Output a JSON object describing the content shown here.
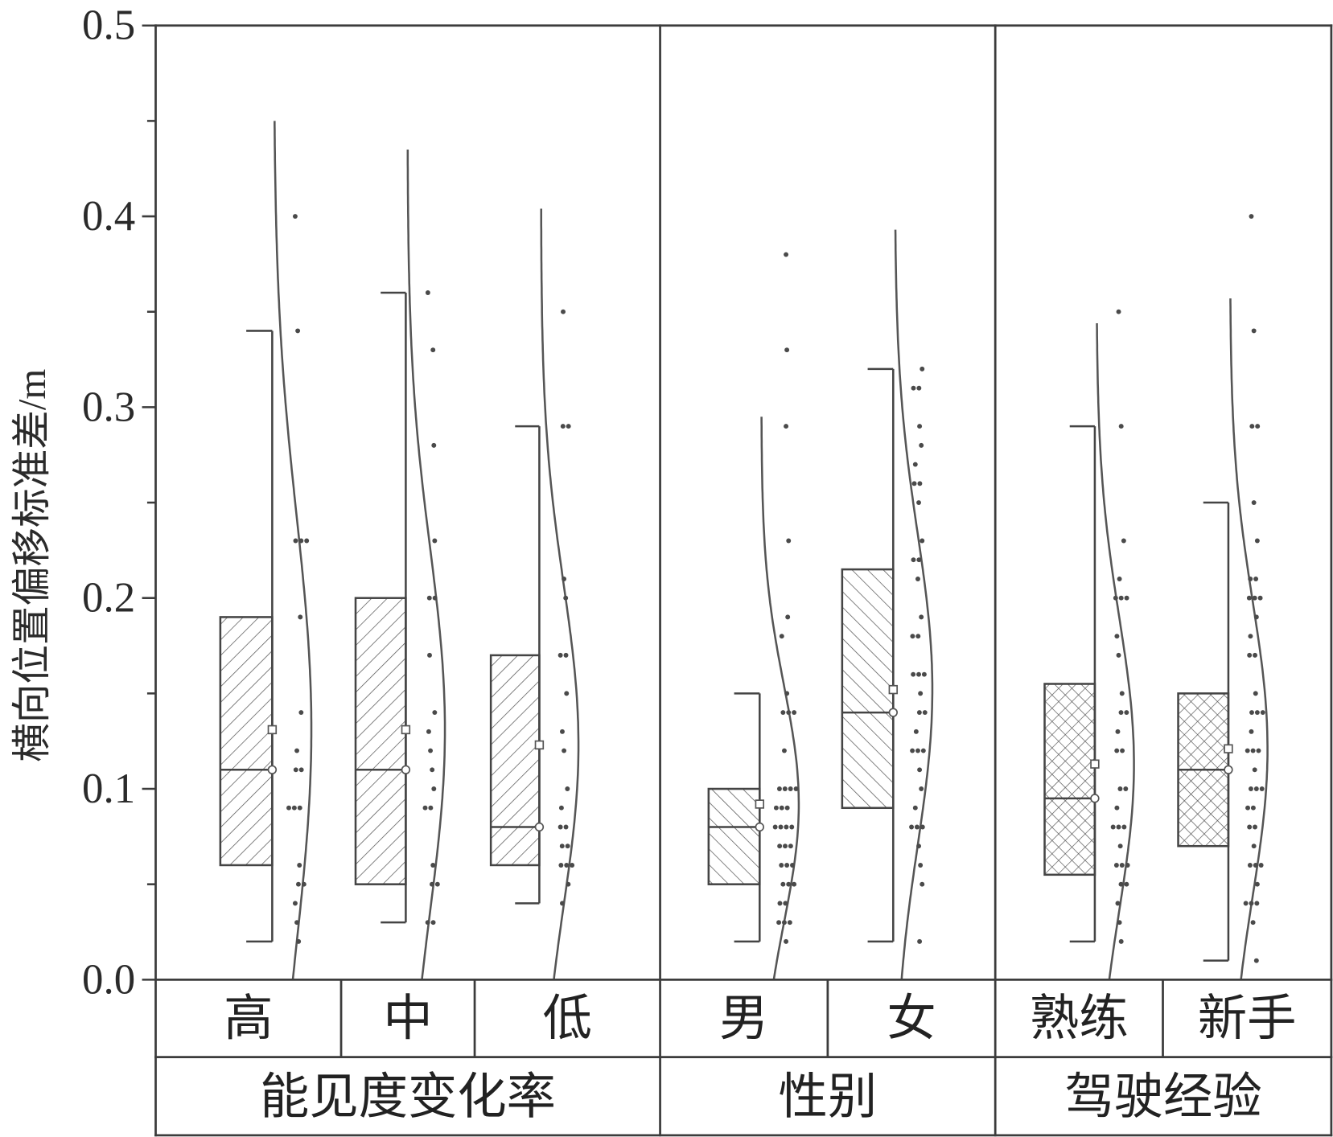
{
  "chart_data": {
    "type": "box",
    "ylabel": "横向位置偏移标准差/m",
    "ylim": [
      0,
      0.5
    ],
    "yticks": [
      0,
      0.1,
      0.2,
      0.3,
      0.4,
      0.5
    ],
    "ytick_labels": [
      "0.0",
      "0.1",
      "0.2",
      "0.3",
      "0.4",
      "0.5"
    ],
    "grid": false,
    "colors": {
      "line": "#444444",
      "curve": "#555555",
      "points": "#4a4a4a",
      "hatch": "#555555",
      "marker_fill": "#ffffff",
      "marker_stroke": "#555555"
    },
    "groups": [
      {
        "name": "能见度变化率",
        "categories": [
          {
            "label": "高",
            "whisker_low": 0.02,
            "q1": 0.06,
            "median": 0.11,
            "q3": 0.19,
            "whisker_high": 0.34,
            "mean": 0.131,
            "curve_sd": 0.112,
            "curve_top": 0.45,
            "points": [
              0.4,
              0.34,
              0.23,
              0.23,
              0.23,
              0.19,
              0.14,
              0.12,
              0.11,
              0.11,
              0.09,
              0.09,
              0.09,
              0.06,
              0.05,
              0.05,
              0.04,
              0.03,
              0.02
            ]
          },
          {
            "label": "中",
            "whisker_low": 0.03,
            "q1": 0.05,
            "median": 0.11,
            "q3": 0.2,
            "whisker_high": 0.36,
            "mean": 0.131,
            "curve_sd": 0.095,
            "curve_top": 0.435,
            "points": [
              0.36,
              0.33,
              0.28,
              0.23,
              0.2,
              0.2,
              0.17,
              0.14,
              0.13,
              0.12,
              0.11,
              0.1,
              0.09,
              0.09,
              0.06,
              0.05,
              0.05,
              0.03,
              0.03
            ]
          },
          {
            "label": "低",
            "whisker_low": 0.04,
            "q1": 0.06,
            "median": 0.08,
            "q3": 0.17,
            "whisker_high": 0.29,
            "mean": 0.123,
            "curve_sd": 0.084,
            "curve_top": 0.404,
            "points": [
              0.35,
              0.29,
              0.29,
              0.21,
              0.2,
              0.17,
              0.17,
              0.15,
              0.13,
              0.12,
              0.1,
              0.09,
              0.08,
              0.08,
              0.07,
              0.07,
              0.06,
              0.06,
              0.06,
              0.05,
              0.04
            ]
          }
        ]
      },
      {
        "name": "性别",
        "categories": [
          {
            "label": "男",
            "whisker_low": 0.02,
            "q1": 0.05,
            "median": 0.08,
            "q3": 0.1,
            "whisker_high": 0.15,
            "mean": 0.092,
            "curve_sd": 0.062,
            "curve_top": 0.295,
            "points": [
              0.38,
              0.33,
              0.29,
              0.23,
              0.19,
              0.18,
              0.15,
              0.14,
              0.14,
              0.14,
              0.12,
              0.1,
              0.1,
              0.1,
              0.1,
              0.09,
              0.09,
              0.09,
              0.08,
              0.08,
              0.08,
              0.08,
              0.07,
              0.07,
              0.07,
              0.06,
              0.06,
              0.06,
              0.05,
              0.05,
              0.05,
              0.04,
              0.04,
              0.03,
              0.03,
              0.03,
              0.02
            ]
          },
          {
            "label": "女",
            "whisker_low": 0.02,
            "q1": 0.09,
            "median": 0.14,
            "q3": 0.215,
            "whisker_high": 0.32,
            "mean": 0.152,
            "curve_sd": 0.082,
            "curve_top": 0.393,
            "points": [
              0.32,
              0.31,
              0.31,
              0.29,
              0.28,
              0.27,
              0.26,
              0.26,
              0.25,
              0.23,
              0.22,
              0.22,
              0.21,
              0.19,
              0.18,
              0.18,
              0.16,
              0.16,
              0.16,
              0.15,
              0.14,
              0.14,
              0.13,
              0.12,
              0.12,
              0.12,
              0.11,
              0.1,
              0.09,
              0.08,
              0.08,
              0.08,
              0.07,
              0.06,
              0.05,
              0.02
            ]
          }
        ]
      },
      {
        "name": "驾驶经验",
        "categories": [
          {
            "label": "熟练",
            "whisker_low": 0.02,
            "q1": 0.055,
            "median": 0.095,
            "q3": 0.155,
            "whisker_high": 0.29,
            "mean": 0.113,
            "curve_sd": 0.077,
            "curve_top": 0.344,
            "points": [
              0.35,
              0.29,
              0.23,
              0.21,
              0.2,
              0.2,
              0.2,
              0.18,
              0.17,
              0.15,
              0.14,
              0.14,
              0.13,
              0.12,
              0.12,
              0.1,
              0.1,
              0.09,
              0.08,
              0.08,
              0.08,
              0.07,
              0.06,
              0.06,
              0.06,
              0.05,
              0.05,
              0.04,
              0.03,
              0.02
            ]
          },
          {
            "label": "新手",
            "whisker_low": 0.01,
            "q1": 0.07,
            "median": 0.11,
            "q3": 0.15,
            "whisker_high": 0.25,
            "mean": 0.121,
            "curve_sd": 0.077,
            "curve_top": 0.357,
            "points": [
              0.4,
              0.34,
              0.29,
              0.29,
              0.25,
              0.23,
              0.21,
              0.21,
              0.2,
              0.2,
              0.2,
              0.19,
              0.18,
              0.17,
              0.17,
              0.15,
              0.14,
              0.14,
              0.14,
              0.13,
              0.12,
              0.12,
              0.12,
              0.11,
              0.1,
              0.1,
              0.1,
              0.09,
              0.09,
              0.08,
              0.08,
              0.07,
              0.06,
              0.06,
              0.06,
              0.05,
              0.04,
              0.04,
              0.04,
              0.03,
              0.01
            ]
          }
        ]
      }
    ]
  }
}
